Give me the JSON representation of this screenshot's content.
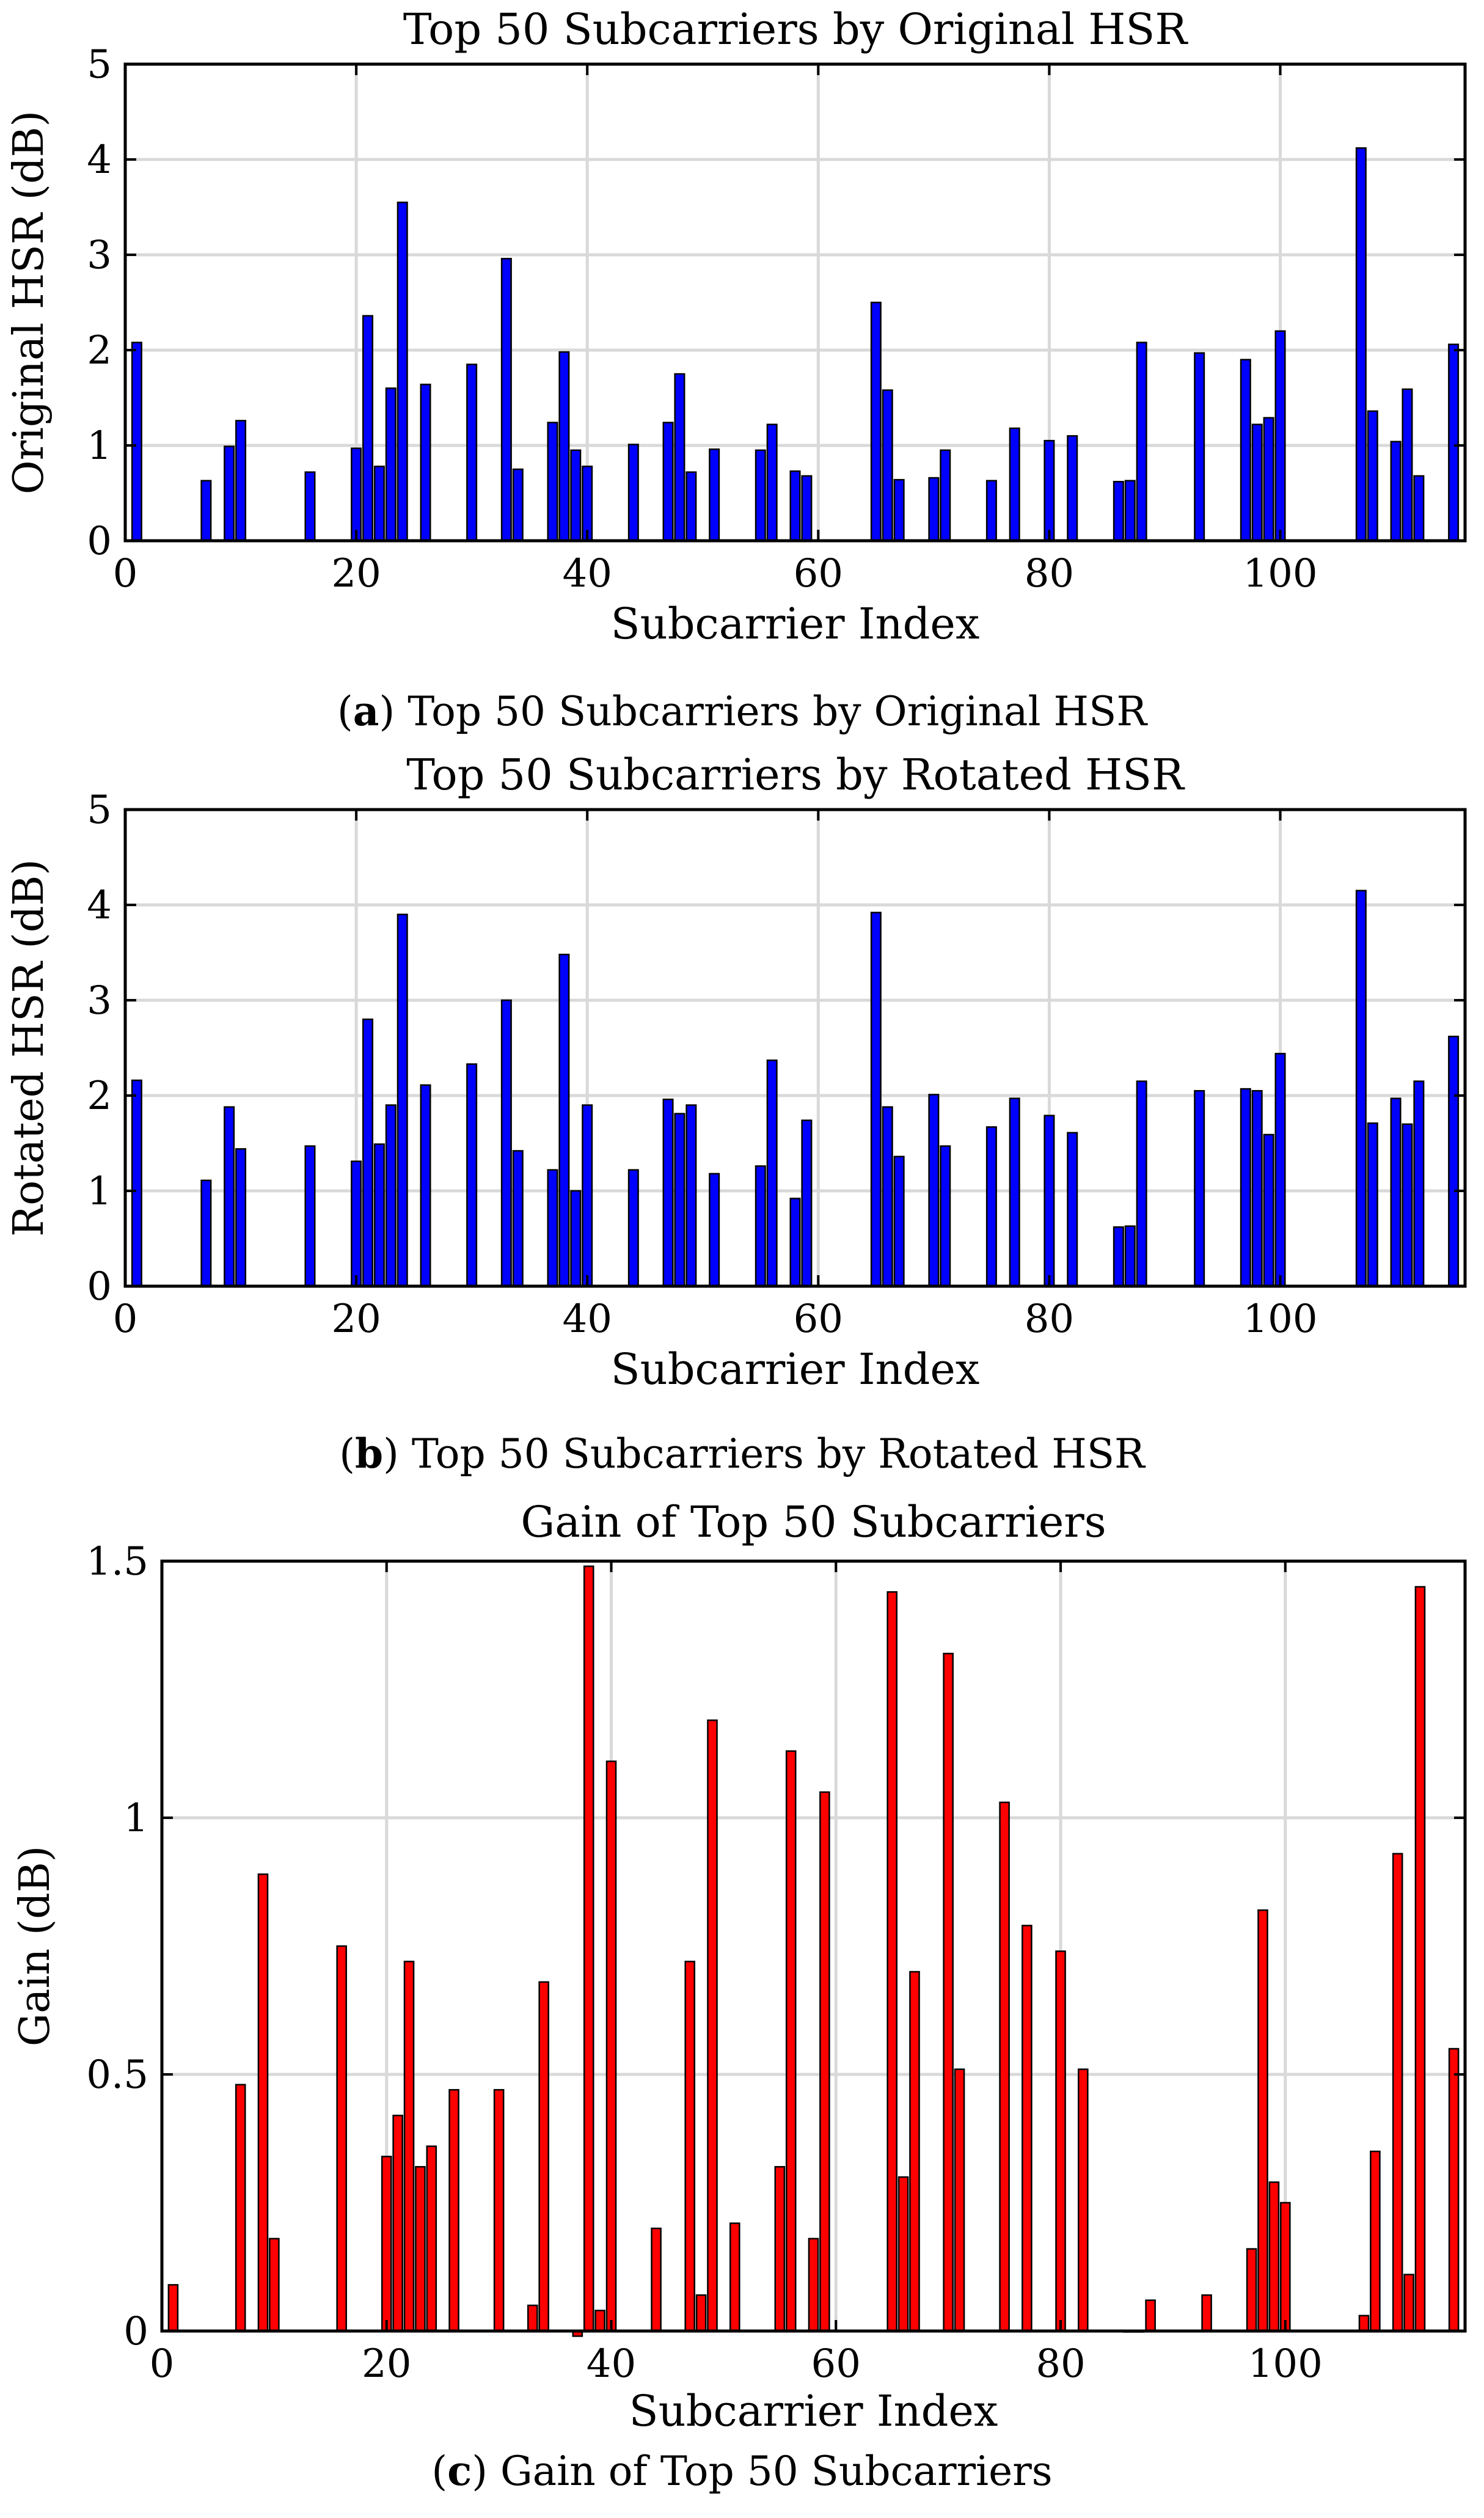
{
  "chart_data": [
    {
      "type": "bar",
      "title": "Top 50 Subcarriers by Original HSR",
      "xlabel": "Subcarrier Index",
      "ylabel": "Original HSR (dB)",
      "xlim": [
        0,
        116
      ],
      "ylim": [
        0,
        5
      ],
      "xticks": [
        0,
        20,
        40,
        60,
        80,
        100
      ],
      "yticks": [
        0,
        1,
        2,
        3,
        4,
        5
      ],
      "grid": true,
      "color": "#0000ff",
      "caption_letter": "a",
      "caption_text": "Top 50 Subcarriers by Original HSR",
      "x": [
        1,
        7,
        9,
        10,
        16,
        20,
        21,
        22,
        23,
        24,
        26,
        30,
        33,
        34,
        37,
        38,
        39,
        40,
        44,
        47,
        48,
        49,
        51,
        55,
        56,
        58,
        59,
        65,
        66,
        67,
        70,
        71,
        75,
        77,
        80,
        82,
        86,
        87,
        88,
        93,
        97,
        98,
        99,
        100,
        107,
        108,
        110,
        111,
        112,
        115
      ],
      "values": [
        2.08,
        0.63,
        0.99,
        1.26,
        0.72,
        0.97,
        2.36,
        0.78,
        1.6,
        3.55,
        1.64,
        1.85,
        2.96,
        0.75,
        1.24,
        1.98,
        0.95,
        0.78,
        1.01,
        1.24,
        1.75,
        0.72,
        0.96,
        0.95,
        1.22,
        0.73,
        0.68,
        2.5,
        1.58,
        0.64,
        0.66,
        0.95,
        0.63,
        1.18,
        1.05,
        1.1,
        0.62,
        0.63,
        2.08,
        1.97,
        1.9,
        1.22,
        1.29,
        2.2,
        4.12,
        1.36,
        1.04,
        1.59,
        0.68,
        2.06
      ]
    },
    {
      "type": "bar",
      "title": "Top 50 Subcarriers by Rotated HSR",
      "xlabel": "Subcarrier Index",
      "ylabel": "Rotated HSR (dB)",
      "xlim": [
        0,
        116
      ],
      "ylim": [
        0,
        5
      ],
      "xticks": [
        0,
        20,
        40,
        60,
        80,
        100
      ],
      "yticks": [
        0,
        1,
        2,
        3,
        4,
        5
      ],
      "grid": true,
      "color": "#0000ff",
      "caption_letter": "b",
      "caption_text": "Top 50 Subcarriers by Rotated HSR",
      "x": [
        1,
        7,
        9,
        10,
        16,
        20,
        21,
        22,
        23,
        24,
        26,
        30,
        33,
        34,
        37,
        38,
        39,
        40,
        44,
        47,
        48,
        49,
        51,
        55,
        56,
        58,
        59,
        65,
        66,
        67,
        70,
        71,
        75,
        77,
        80,
        82,
        86,
        87,
        88,
        93,
        97,
        98,
        99,
        100,
        107,
        108,
        110,
        111,
        112,
        115
      ],
      "values": [
        2.16,
        1.11,
        1.88,
        1.44,
        1.47,
        1.31,
        2.8,
        1.49,
        1.9,
        3.9,
        2.11,
        2.33,
        3.0,
        1.42,
        1.22,
        3.48,
        1.0,
        1.9,
        1.22,
        1.96,
        1.81,
        1.9,
        1.18,
        1.26,
        2.37,
        0.92,
        1.74,
        3.92,
        1.88,
        1.36,
        2.01,
        1.47,
        1.67,
        1.97,
        1.79,
        1.61,
        0.62,
        0.63,
        2.15,
        2.05,
        2.07,
        2.05,
        1.59,
        2.44,
        4.15,
        1.71,
        1.97,
        1.7,
        2.15,
        2.62
      ]
    },
    {
      "type": "bar",
      "title": "Gain of Top 50 Subcarriers",
      "xlabel": "Subcarrier Index",
      "ylabel": "Gain (dB)",
      "xlim": [
        0,
        116
      ],
      "ylim": [
        0,
        1.5
      ],
      "xticks": [
        0,
        20,
        40,
        60,
        80,
        100
      ],
      "yticks": [
        0,
        0.5,
        1,
        1.5
      ],
      "grid": true,
      "color": "#ff0000",
      "caption_letter": "c",
      "caption_text": "Gain of Top 50 Subcarriers",
      "x": [
        1,
        7,
        9,
        10,
        16,
        20,
        21,
        22,
        23,
        24,
        26,
        30,
        33,
        34,
        37,
        38,
        39,
        40,
        44,
        47,
        48,
        49,
        51,
        55,
        56,
        58,
        59,
        65,
        66,
        67,
        70,
        71,
        75,
        77,
        80,
        82,
        86,
        87,
        88,
        93,
        97,
        98,
        99,
        100,
        107,
        108,
        110,
        111,
        112,
        115
      ],
      "values": [
        0.09,
        0.48,
        0.89,
        0.18,
        0.75,
        0.34,
        0.42,
        0.72,
        0.32,
        0.36,
        0.47,
        0.47,
        0.05,
        0.68,
        -0.01,
        1.49,
        0.04,
        1.11,
        0.2,
        0.72,
        0.07,
        1.19,
        0.21,
        0.32,
        1.13,
        0.18,
        1.05,
        1.44,
        0.3,
        0.7,
        1.32,
        0.51,
        1.03,
        0.79,
        0.74,
        0.51,
        0.0,
        0.0,
        0.06,
        0.07,
        0.16,
        0.82,
        0.29,
        0.25,
        0.03,
        0.35,
        0.93,
        0.11,
        1.45,
        0.55
      ]
    }
  ]
}
